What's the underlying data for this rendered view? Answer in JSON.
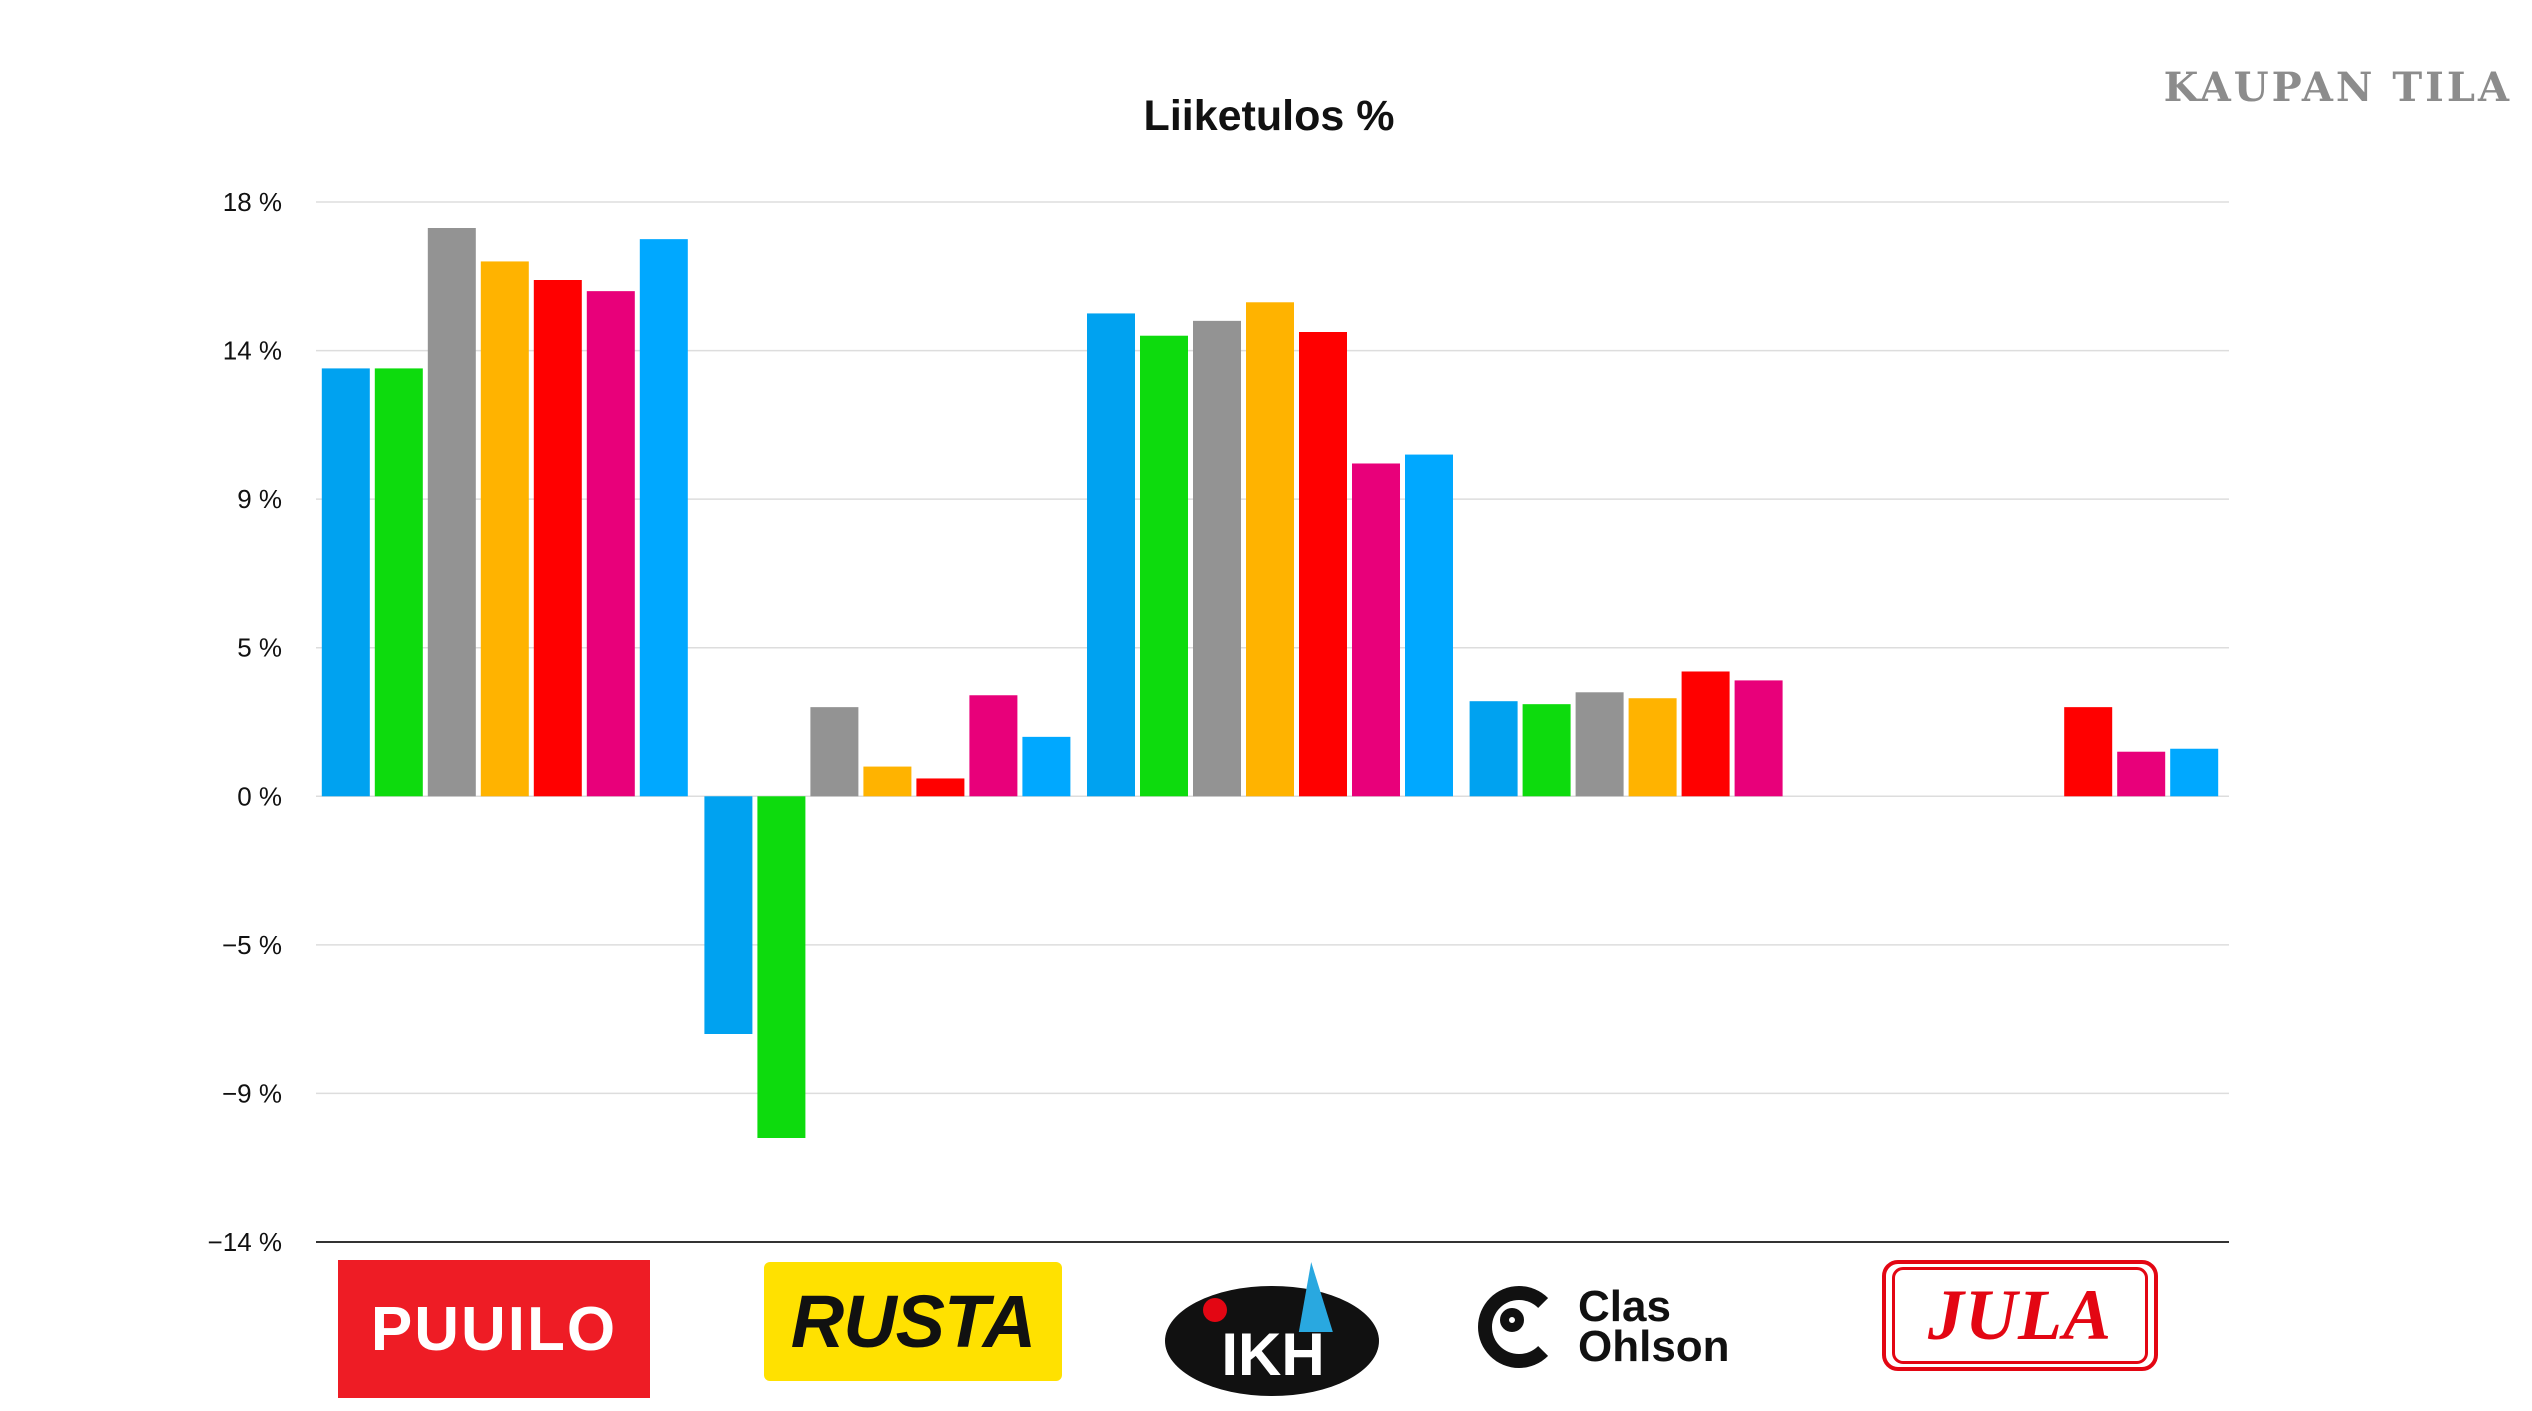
{
  "brand": {
    "text": "KAUPAN TILA"
  },
  "logos": {
    "puuilo": "PUUILO",
    "rusta": "RUSTA",
    "ikh": "IKH",
    "clas_ohlson": "Clas\nOhlson",
    "jula": "JULA"
  },
  "chart_data": {
    "type": "bar",
    "title": "Liiketulos %",
    "xlabel": "",
    "ylabel": "",
    "ylim": [
      -14,
      18
    ],
    "y_ticks": [
      18,
      14,
      9,
      5,
      0,
      -5,
      -9,
      -14
    ],
    "y_tick_labels": [
      "18 %",
      "14 %",
      "9 %",
      "5 %",
      "0 %",
      "−5 %",
      "−9 %",
      "−14 %"
    ],
    "grid": true,
    "legend": "none",
    "categories": [
      "Puuilo",
      "Rusta",
      "IKH",
      "Clas Ohlson",
      "Jula"
    ],
    "series": [
      {
        "color": "#00a2f0",
        "values": [
          13.4,
          -7.4,
          15.0,
          3.2,
          null
        ]
      },
      {
        "color": "#0ddb0d",
        "values": [
          13.4,
          -10.5,
          14.4,
          3.1,
          null
        ]
      },
      {
        "color": "#939393",
        "values": [
          17.3,
          3.0,
          14.8,
          3.5,
          null
        ]
      },
      {
        "color": "#ffb300",
        "values": [
          16.4,
          1.0,
          15.3,
          3.3,
          null
        ]
      },
      {
        "color": "#ff0000",
        "values": [
          15.9,
          0.6,
          14.5,
          4.2,
          3.0
        ]
      },
      {
        "color": "#e8007a",
        "values": [
          15.6,
          3.4,
          10.2,
          3.9,
          1.5
        ]
      },
      {
        "color": "#00a8ff",
        "values": [
          17.0,
          2.0,
          10.5,
          null,
          1.6
        ]
      }
    ]
  }
}
